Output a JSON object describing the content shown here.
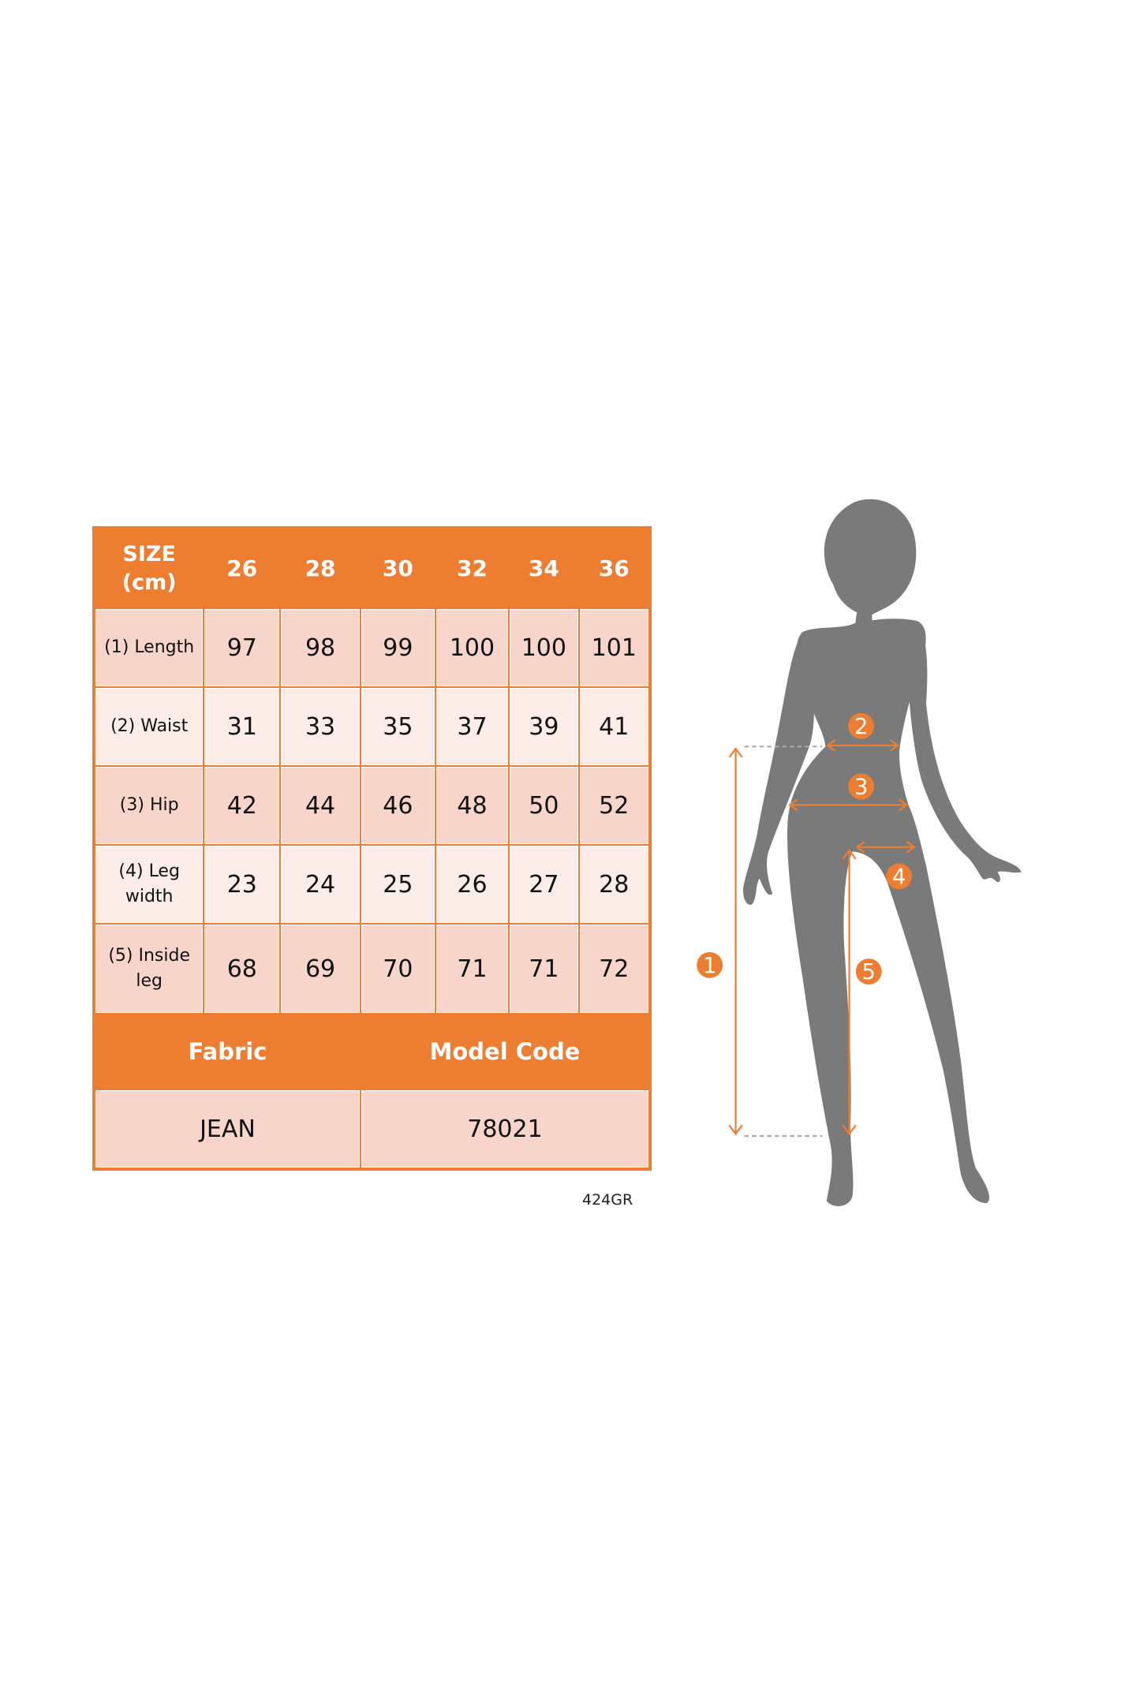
{
  "table": {
    "header_label": "SIZE (cm)",
    "sizes": [
      "26",
      "28",
      "30",
      "32",
      "34",
      "36"
    ],
    "rows": [
      {
        "label": "(1) Length",
        "values": [
          "97",
          "98",
          "99",
          "100",
          "100",
          "101"
        ]
      },
      {
        "label": "(2) Waist",
        "values": [
          "31",
          "33",
          "35",
          "37",
          "39",
          "41"
        ]
      },
      {
        "label": "(3) Hip",
        "values": [
          "42",
          "44",
          "46",
          "48",
          "50",
          "52"
        ]
      },
      {
        "label": "(4) Leg width",
        "values": [
          "23",
          "24",
          "25",
          "26",
          "27",
          "28"
        ]
      },
      {
        "label": "(5) Inside leg",
        "values": [
          "68",
          "69",
          "70",
          "71",
          "71",
          "72"
        ]
      }
    ],
    "fabric_label": "Fabric",
    "fabric_value": "JEAN",
    "model_code_label": "Model Code",
    "model_code_value": "78021"
  },
  "code_note": "424GR",
  "figure": {
    "markers": [
      "1",
      "2",
      "3",
      "4",
      "5"
    ],
    "silhouette_color": "#7A7A7A",
    "accent_color": "#ED7D31"
  }
}
